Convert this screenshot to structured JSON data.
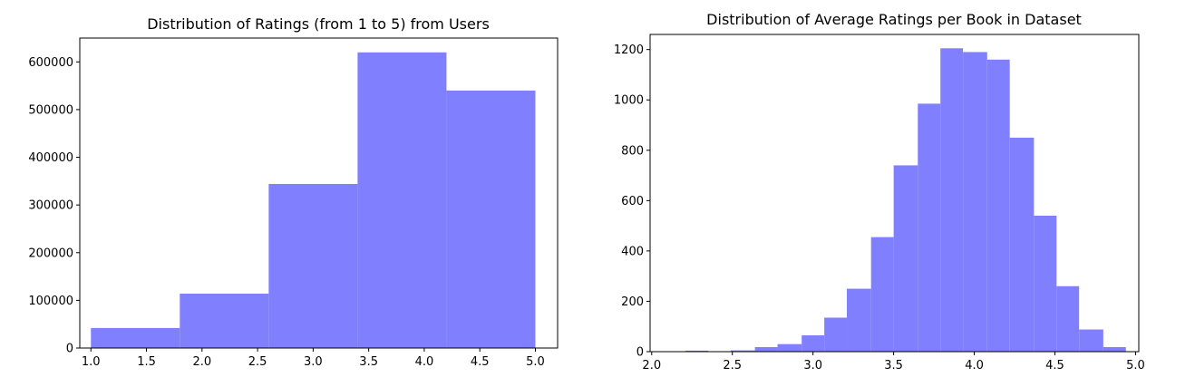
{
  "chart_data": [
    {
      "type": "bar",
      "subtype": "histogram",
      "title": "Distribution of Ratings (from 1 to 5) from Users",
      "xlabel": "",
      "ylabel": "",
      "xlim": [
        0.9,
        5.2
      ],
      "ylim": [
        0,
        650000
      ],
      "bins": [
        {
          "x0": 1.0,
          "x1": 1.8,
          "value": 42000
        },
        {
          "x0": 1.8,
          "x1": 2.6,
          "value": 114000
        },
        {
          "x0": 2.6,
          "x1": 3.4,
          "value": 344000
        },
        {
          "x0": 3.4,
          "x1": 4.2,
          "value": 620000
        },
        {
          "x0": 4.2,
          "x1": 5.0,
          "value": 540000
        }
      ],
      "xticks": [
        "1.0",
        "1.5",
        "2.0",
        "2.5",
        "3.0",
        "3.5",
        "4.0",
        "4.5",
        "5.0"
      ],
      "yticks": [
        "0",
        "100000",
        "200000",
        "300000",
        "400000",
        "500000",
        "600000"
      ],
      "grid": false,
      "color": "#8080ff"
    },
    {
      "type": "bar",
      "subtype": "histogram",
      "title": "Distribution of Average Ratings per Book in Dataset",
      "xlabel": "",
      "ylabel": "",
      "xlim": [
        1.99,
        5.02
      ],
      "ylim": [
        0,
        1260
      ],
      "bins": [
        {
          "x0": 2.06,
          "x1": 2.21,
          "value": 1
        },
        {
          "x0": 2.21,
          "x1": 2.35,
          "value": 4
        },
        {
          "x0": 2.35,
          "x1": 2.49,
          "value": 1
        },
        {
          "x0": 2.49,
          "x1": 2.64,
          "value": 5
        },
        {
          "x0": 2.64,
          "x1": 2.78,
          "value": 18
        },
        {
          "x0": 2.78,
          "x1": 2.93,
          "value": 30
        },
        {
          "x0": 2.93,
          "x1": 3.07,
          "value": 65
        },
        {
          "x0": 3.07,
          "x1": 3.21,
          "value": 135
        },
        {
          "x0": 3.21,
          "x1": 3.36,
          "value": 250
        },
        {
          "x0": 3.36,
          "x1": 3.5,
          "value": 455
        },
        {
          "x0": 3.5,
          "x1": 3.65,
          "value": 740
        },
        {
          "x0": 3.65,
          "x1": 3.79,
          "value": 985
        },
        {
          "x0": 3.79,
          "x1": 3.93,
          "value": 1205
        },
        {
          "x0": 3.93,
          "x1": 4.08,
          "value": 1190
        },
        {
          "x0": 4.08,
          "x1": 4.22,
          "value": 1160
        },
        {
          "x0": 4.22,
          "x1": 4.37,
          "value": 850
        },
        {
          "x0": 4.37,
          "x1": 4.51,
          "value": 540
        },
        {
          "x0": 4.51,
          "x1": 4.65,
          "value": 260
        },
        {
          "x0": 4.65,
          "x1": 4.8,
          "value": 88
        },
        {
          "x0": 4.8,
          "x1": 4.94,
          "value": 18
        }
      ],
      "xticks": [
        "2.0",
        "2.5",
        "3.0",
        "3.5",
        "4.0",
        "4.5",
        "5.0"
      ],
      "yticks": [
        "0",
        "200",
        "400",
        "600",
        "800",
        "1000",
        "1200"
      ],
      "grid": false,
      "color": "#8080ff"
    }
  ]
}
